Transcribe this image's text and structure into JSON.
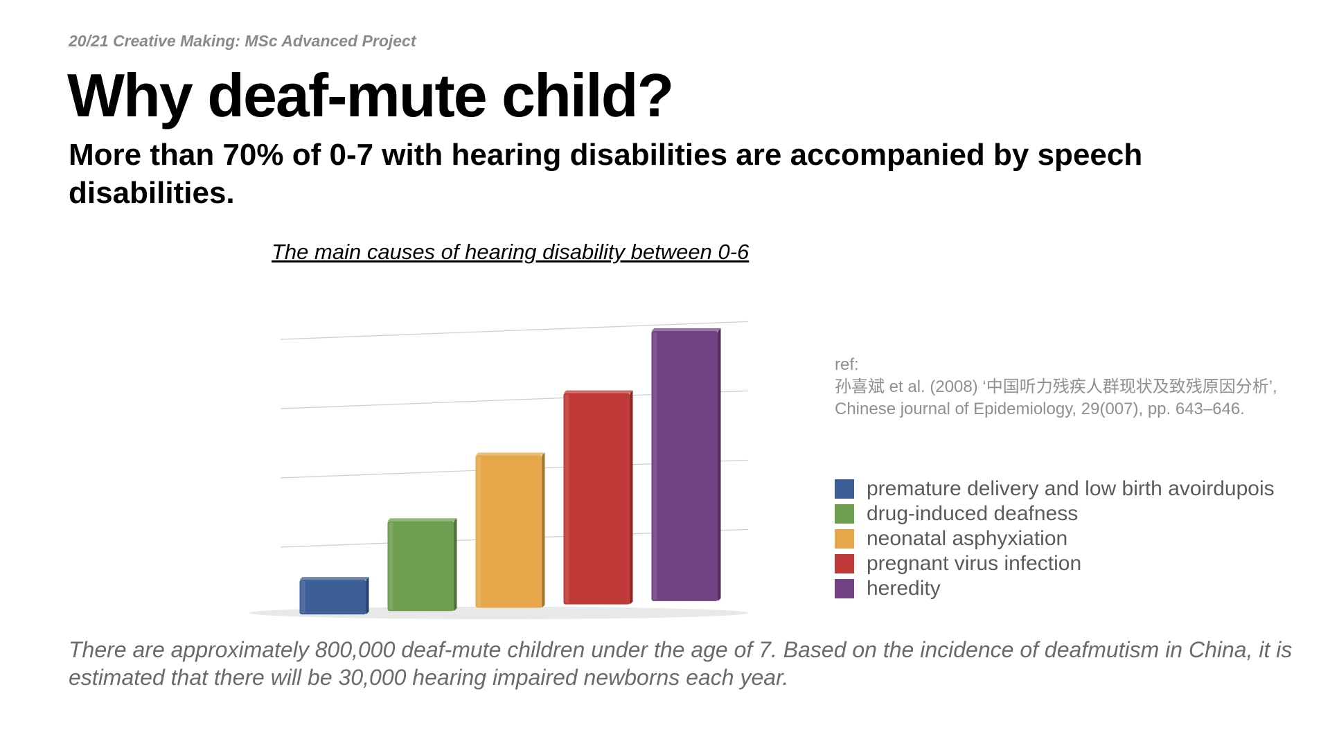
{
  "header": {
    "course": "20/21 Creative Making: MSc Advanced Project",
    "title": "Why deaf-mute child?",
    "subtitle": "More than 70% of 0-7 with hearing disabilities are accompanied by speech disabilities."
  },
  "reference": {
    "label": "ref:",
    "line1": "孙喜斌 et al. (2008) ‘中国听力残疾人群现状及致残原因分析’,",
    "line2": "Chinese journal of Epidemiology, 29(007), pp. 643–646."
  },
  "footer": {
    "text": "There are approximately 800,000 deaf-mute children under the age of 7. Based on the incidence of deafmutism in China, it is estimated that there will be 30,000 hearing impaired newborns each year."
  },
  "chart_data": {
    "type": "bar",
    "title": "The main causes of hearing disability between 0-6",
    "style": "3d",
    "grid": true,
    "ylim": [
      0,
      4
    ],
    "legend_position": "right",
    "categories": [
      "premature delivery and low birth avoirdupois",
      "drug-induced deafness",
      "neonatal asphyxiation",
      "pregnant virus infection",
      "heredity"
    ],
    "values": [
      0.5,
      1.3,
      2.2,
      3.05,
      3.9
    ],
    "colors": [
      "#3e5e97",
      "#6e9e50",
      "#e5a74a",
      "#c03a39",
      "#734282"
    ]
  }
}
